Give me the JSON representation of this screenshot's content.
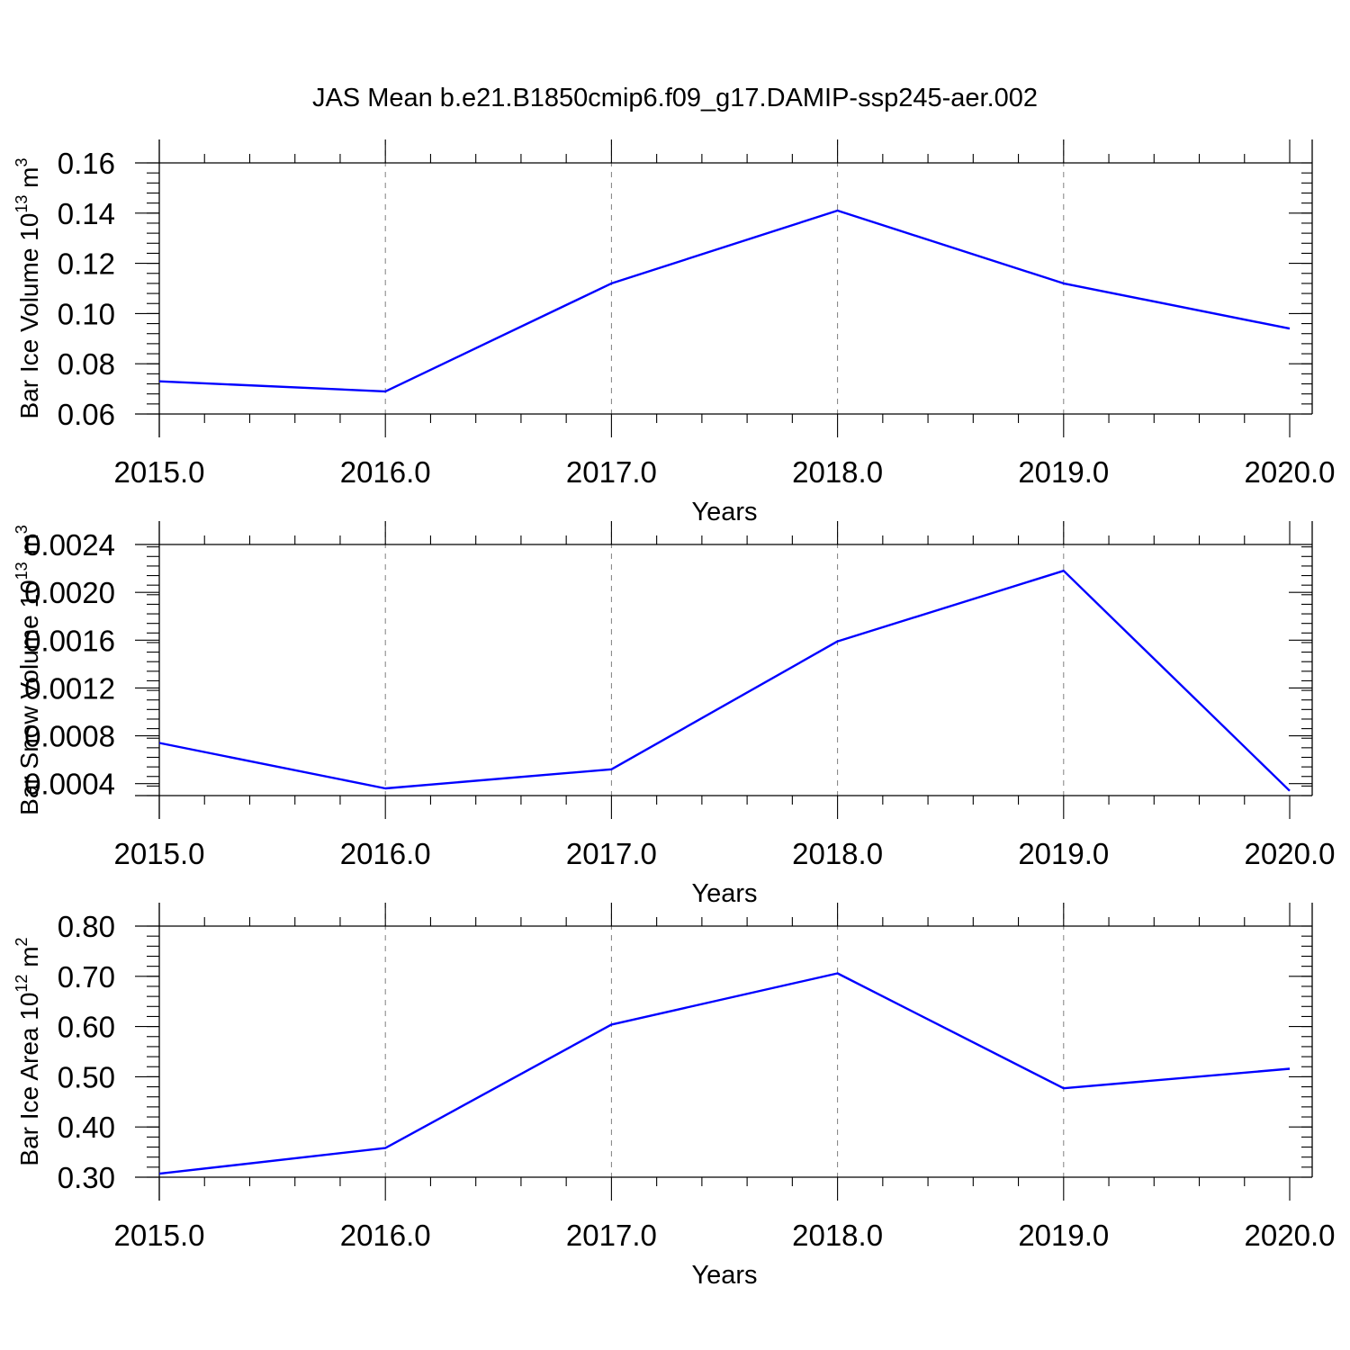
{
  "title": "JAS Mean b.e21.B1850cmip6.f09_g17.DAMIP-ssp245-aer.002",
  "colors": {
    "line": "#0000ff",
    "axis": "#000000",
    "grid": "#808080"
  },
  "chart_data": [
    {
      "type": "line",
      "xlabel": "Years",
      "ylabel": "Bar Ice Volume 10^13 m^3",
      "ylabel_parts": {
        "base": "Bar Ice Volume 10",
        "exp1": "13",
        "mid": " m",
        "exp2": "3"
      },
      "x": [
        2015,
        2016,
        2017,
        2018,
        2019,
        2020
      ],
      "x_tick_labels": [
        "2015.0",
        "2016.0",
        "2017.0",
        "2018.0",
        "2019.0",
        "2020.0"
      ],
      "xlim": [
        2015,
        2020
      ],
      "y_ticks": [
        0.06,
        0.08,
        0.1,
        0.12,
        0.14,
        0.16
      ],
      "y_tick_labels": [
        "0.06",
        "0.08",
        "0.10",
        "0.12",
        "0.14",
        "0.16"
      ],
      "ylim": [
        0.06,
        0.16
      ],
      "grid": "vertical dashed",
      "series": [
        {
          "values": [
            0.073,
            0.069,
            0.112,
            0.141,
            0.112,
            0.094
          ]
        }
      ]
    },
    {
      "type": "line",
      "xlabel": "Years",
      "ylabel": "Bar Snow Volume 10^13 m^3",
      "ylabel_parts": {
        "base": "Bar Snow Volume 10",
        "exp1": "13",
        "mid": " m",
        "exp2": "3"
      },
      "x": [
        2015,
        2016,
        2017,
        2018,
        2019,
        2020
      ],
      "x_tick_labels": [
        "2015.0",
        "2016.0",
        "2017.0",
        "2018.0",
        "2019.0",
        "2020.0"
      ],
      "xlim": [
        2015,
        2020
      ],
      "y_ticks": [
        0.0004,
        0.0008,
        0.0012,
        0.0016,
        0.002,
        0.0024
      ],
      "y_tick_labels": [
        "0.0004",
        "0.0008",
        "0.0012",
        "0.0016",
        "0.0020",
        "0.0024"
      ],
      "ylim": [
        0.0003,
        0.0024
      ],
      "grid": "vertical dashed",
      "series": [
        {
          "values": [
            0.00074,
            0.00036,
            0.00052,
            0.00159,
            0.00218,
            0.00034
          ]
        }
      ]
    },
    {
      "type": "line",
      "xlabel": "Years",
      "ylabel": "Bar Ice Area 10^12 m^2",
      "ylabel_parts": {
        "base": "Bar Ice Area 10",
        "exp1": "12",
        "mid": " m",
        "exp2": "2"
      },
      "x": [
        2015,
        2016,
        2017,
        2018,
        2019,
        2020
      ],
      "x_tick_labels": [
        "2015.0",
        "2016.0",
        "2017.0",
        "2018.0",
        "2019.0",
        "2020.0"
      ],
      "xlim": [
        2015,
        2020
      ],
      "y_ticks": [
        0.3,
        0.4,
        0.5,
        0.6,
        0.7,
        0.8
      ],
      "y_tick_labels": [
        "0.30",
        "0.40",
        "0.50",
        "0.60",
        "0.70",
        "0.80"
      ],
      "ylim": [
        0.3,
        0.8
      ],
      "grid": "vertical dashed",
      "series": [
        {
          "values": [
            0.307,
            0.358,
            0.604,
            0.706,
            0.477,
            0.516
          ]
        }
      ]
    }
  ]
}
